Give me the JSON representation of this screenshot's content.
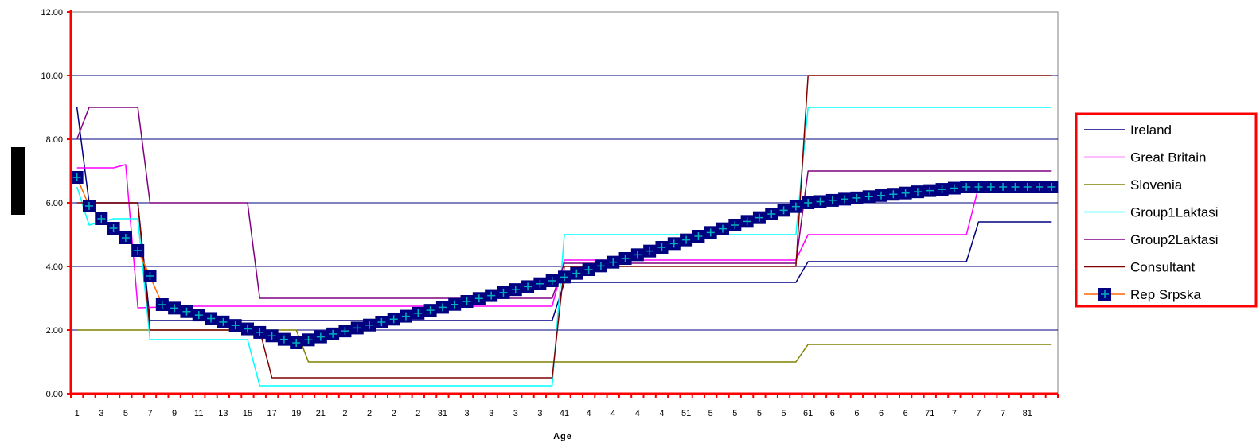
{
  "chart_data": {
    "type": "line",
    "title": "",
    "xlabel": "Age",
    "ylabel": "",
    "ylim": [
      0,
      12
    ],
    "y_ticks": [
      "0.00",
      "2.00",
      "4.00",
      "6.00",
      "8.00",
      "10.00",
      "12.00"
    ],
    "x_tick_labels": [
      "1",
      "3",
      "5",
      "7",
      "9",
      "11",
      "13",
      "15",
      "17",
      "19",
      "21",
      "2",
      "2",
      "2",
      "2",
      "31",
      "3",
      "3",
      "3",
      "3",
      "41",
      "4",
      "4",
      "4",
      "4",
      "51",
      "5",
      "5",
      "5",
      "5",
      "61",
      "6",
      "6",
      "6",
      "6",
      "71",
      "7",
      "7",
      "7",
      "81"
    ],
    "grid": "horizontal",
    "legend_position": "right",
    "series": [
      {
        "name": "Ireland",
        "color": "#000080",
        "points": [
          [
            1,
            9
          ],
          [
            2,
            6
          ],
          [
            4,
            6
          ],
          [
            5,
            6
          ],
          [
            6,
            6
          ],
          [
            7,
            2.3
          ],
          [
            10,
            2.3
          ],
          [
            20,
            2.3
          ],
          [
            40,
            2.3
          ],
          [
            41,
            3.5
          ],
          [
            60,
            3.5
          ],
          [
            61,
            4.15
          ],
          [
            74,
            4.15
          ],
          [
            75,
            5.4
          ],
          [
            81,
            5.4
          ]
        ]
      },
      {
        "name": "Great Britain",
        "color": "#ff00ff",
        "points": [
          [
            1,
            7.1
          ],
          [
            4,
            7.1
          ],
          [
            5,
            7.2
          ],
          [
            6,
            2.7
          ],
          [
            10,
            2.75
          ],
          [
            20,
            2.75
          ],
          [
            40,
            2.75
          ],
          [
            41,
            4.2
          ],
          [
            60,
            4.2
          ],
          [
            61,
            5
          ],
          [
            74,
            5
          ],
          [
            75,
            6.5
          ],
          [
            81,
            6.5
          ]
        ]
      },
      {
        "name": "Slovenia",
        "color": "#808000",
        "points": [
          [
            1,
            2
          ],
          [
            18,
            2
          ],
          [
            19,
            2
          ],
          [
            20,
            1
          ],
          [
            40,
            1
          ],
          [
            60,
            1
          ],
          [
            61,
            1.55
          ],
          [
            81,
            1.55
          ]
        ]
      },
      {
        "name": "Group1Laktasi",
        "color": "#00ffff",
        "points": [
          [
            1,
            6.5
          ],
          [
            2,
            5.3
          ],
          [
            4,
            5.5
          ],
          [
            6,
            5.5
          ],
          [
            7,
            1.7
          ],
          [
            10,
            1.7
          ],
          [
            15,
            1.7
          ],
          [
            16,
            0.25
          ],
          [
            40,
            0.25
          ],
          [
            41,
            5
          ],
          [
            60,
            5
          ],
          [
            61,
            9
          ],
          [
            81,
            9
          ]
        ]
      },
      {
        "name": "Group2Laktasi",
        "color": "#800080",
        "points": [
          [
            1,
            8
          ],
          [
            2,
            9
          ],
          [
            6,
            9
          ],
          [
            7,
            6
          ],
          [
            15,
            6
          ],
          [
            16,
            3
          ],
          [
            40,
            3
          ],
          [
            41,
            4.1
          ],
          [
            60,
            4.1
          ],
          [
            61,
            7
          ],
          [
            81,
            7
          ]
        ]
      },
      {
        "name": "Consultant",
        "color": "#800000",
        "points": [
          [
            1,
            6
          ],
          [
            6,
            6
          ],
          [
            7,
            2
          ],
          [
            16,
            2
          ],
          [
            17,
            0.5
          ],
          [
            40,
            0.5
          ],
          [
            41,
            4
          ],
          [
            60,
            4
          ],
          [
            61,
            10
          ],
          [
            81,
            10
          ]
        ]
      },
      {
        "name": "Rep Srpska",
        "color": "#000080",
        "line_color": "#ff6600",
        "marker": "square-plus",
        "points": [
          [
            1,
            6.8
          ],
          [
            2,
            5.9
          ],
          [
            3,
            5.5
          ],
          [
            4,
            5.2
          ],
          [
            5,
            4.9
          ],
          [
            6,
            4.5
          ],
          [
            7,
            3.7
          ],
          [
            8,
            2.8
          ],
          [
            19,
            1.6
          ],
          [
            40,
            3.55
          ],
          [
            61,
            6
          ],
          [
            74,
            6.5
          ],
          [
            81,
            6.5
          ]
        ]
      }
    ]
  }
}
